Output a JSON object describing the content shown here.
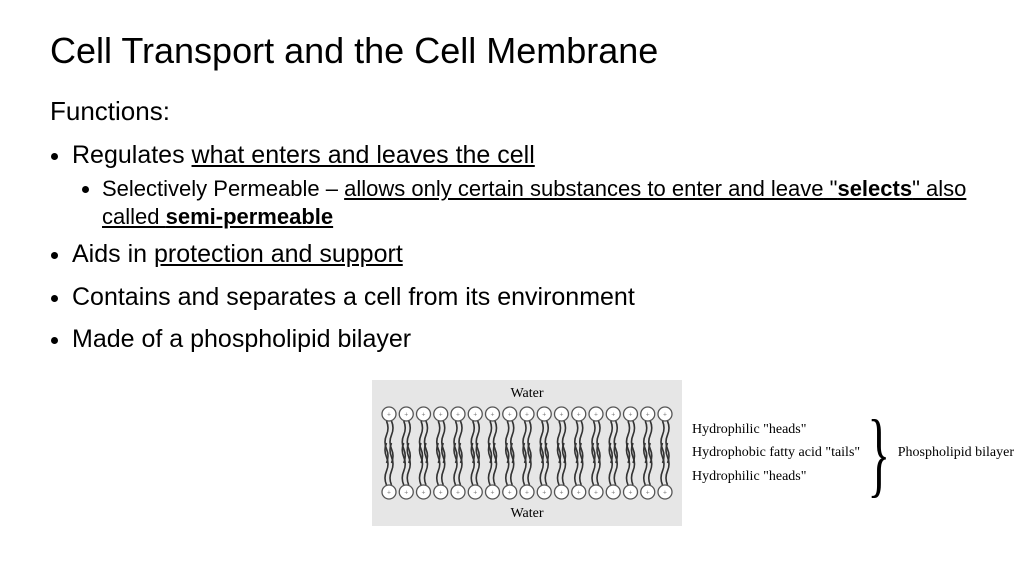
{
  "title": "Cell Transport and the Cell Membrane",
  "subtitle": "Functions:",
  "bullets": {
    "b1_lead": "Regulates ",
    "b1_u": "what enters and leaves the cell",
    "b1s_lead": "Selectively Permeable – ",
    "b1s_u1": "allows only certain substances to enter and leave",
    "b1s_mid": " \"",
    "b1s_bold1": "selects",
    "b1s_mid2": "\" also called ",
    "b1s_bold2": "semi-permeable",
    "b2_lead": "Aids in ",
    "b2_u": "protection and support",
    "b3": "Contains and separates a cell from its environment",
    "b4": "Made of a phospholipid bilayer"
  },
  "diagram": {
    "water": "Water",
    "label_heads": "Hydrophilic \"heads\"",
    "label_tails": "Hydrophobic fatty acid \"tails\"",
    "brace_label": "Phospholipid bilayer",
    "panel_bg": "#e6e6e6",
    "head_count": 17,
    "head_border": "#555555",
    "head_fill": "#ffffff",
    "tail_color": "#333333"
  },
  "colors": {
    "background": "#ffffff",
    "text": "#000000"
  },
  "fonts": {
    "body": "Comic Sans MS",
    "diagram": "Times New Roman",
    "title_size_pt": 36,
    "body_size_pt": 25,
    "sub_size_pt": 22,
    "diagram_size_pt": 14
  }
}
